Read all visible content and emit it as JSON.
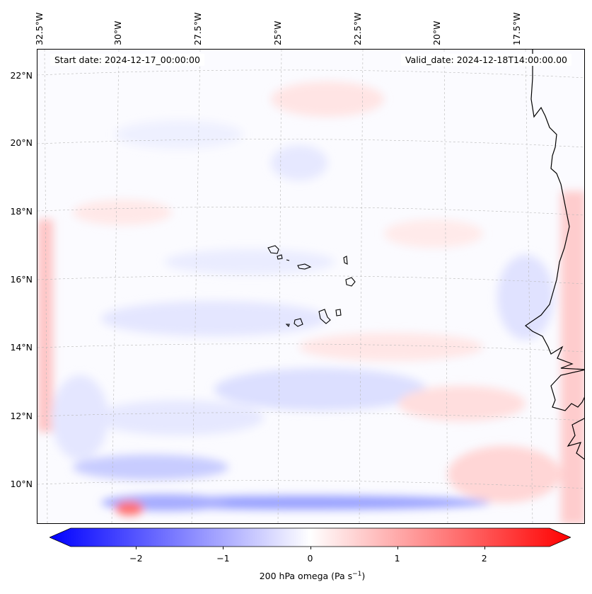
{
  "map": {
    "info_left": "Start date: 2024-12-17_00:00:00",
    "info_right": "Valid_date: 2024-12-18T14:00:00.00",
    "lon_labels": [
      "32.5°W",
      "30°W",
      "27.5°W",
      "25°W",
      "22.5°W",
      "20°W",
      "17.5°W"
    ],
    "lat_labels": [
      "22°N",
      "20°N",
      "18°N",
      "16°N",
      "14°N",
      "12°N",
      "10°N"
    ],
    "field_variable": "200 hPa omega",
    "colors": {
      "negative": "#0000ff",
      "zero": "#ffffff",
      "positive": "#ff0000",
      "coast": "#000000",
      "grid": "#b0b0b0"
    }
  },
  "colorbar": {
    "label_main": "200 hPa omega (Pa s",
    "label_sup": "−1",
    "label_end": ")",
    "ticks": [
      "−2",
      "−1",
      "0",
      "1",
      "2"
    ],
    "min": -2.75,
    "max": 2.75,
    "tick_values": [
      -2,
      -1,
      0,
      1,
      2
    ]
  }
}
